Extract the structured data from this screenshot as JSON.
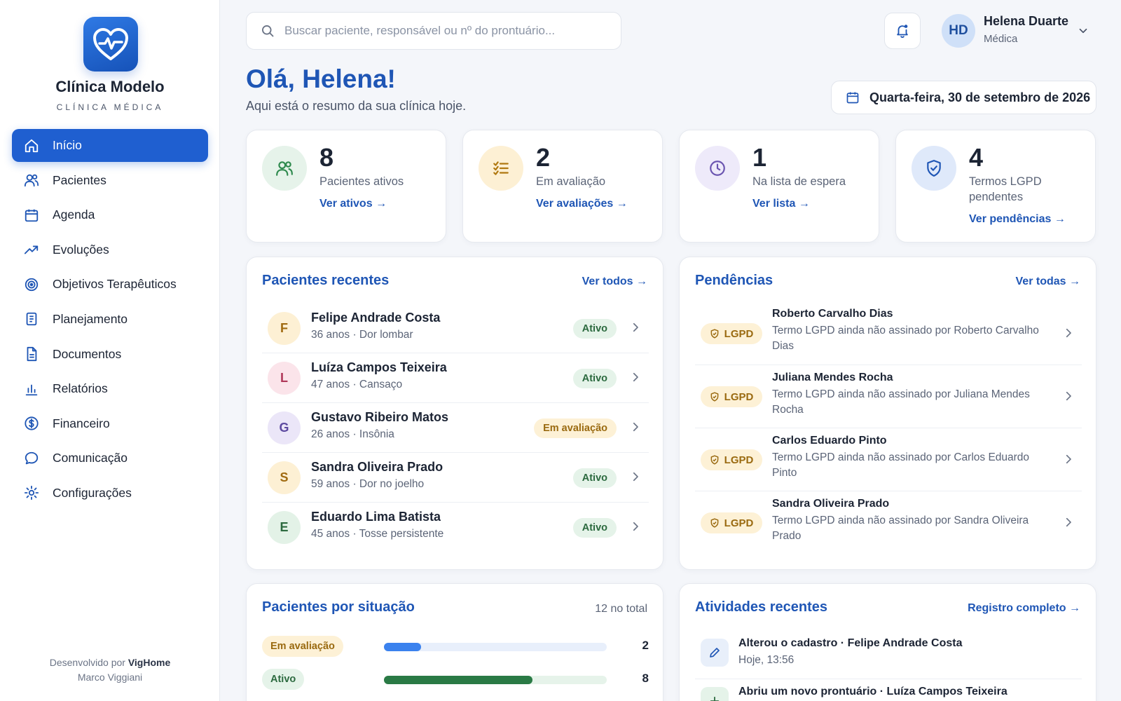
{
  "brand": {
    "name": "Clínica Modelo",
    "subtitle": "CLÍNICA MÉDICA"
  },
  "sidebar": {
    "items": [
      {
        "label": "Início",
        "icon": "home-icon",
        "active": true
      },
      {
        "label": "Pacientes",
        "icon": "users-icon"
      },
      {
        "label": "Agenda",
        "icon": "calendar-icon"
      },
      {
        "label": "Evoluções",
        "icon": "trending-up-icon"
      },
      {
        "label": "Objetivos Terapêuticos",
        "icon": "target-icon"
      },
      {
        "label": "Planejamento",
        "icon": "clipboard-icon"
      },
      {
        "label": "Documentos",
        "icon": "document-icon"
      },
      {
        "label": "Relatórios",
        "icon": "bar-chart-icon"
      },
      {
        "label": "Financeiro",
        "icon": "dollar-icon"
      },
      {
        "label": "Comunicação",
        "icon": "chat-icon"
      },
      {
        "label": "Configurações",
        "icon": "gear-icon"
      }
    ],
    "footer": {
      "prefix": "Desenvolvido por",
      "company": "VigHome",
      "author": "Marco Viggiani"
    }
  },
  "header": {
    "search_placeholder": "Buscar paciente, responsável ou nº do prontuário...",
    "user": {
      "initials": "HD",
      "name": "Helena Duarte",
      "role": "Médica"
    }
  },
  "greeting": {
    "title": "Olá, Helena!",
    "subtitle": "Aqui está o resumo da sua clínica hoje.",
    "date": "Quarta-feira, 30 de setembro de 2026"
  },
  "stats": [
    {
      "value": "8",
      "label": "Pacientes ativos",
      "link": "Ver ativos",
      "icon": "users-icon",
      "color": "#2f8a4e",
      "bg": "#e6f3ea"
    },
    {
      "value": "2",
      "label": "Em avaliação",
      "link": "Ver avaliações",
      "icon": "checklist-icon",
      "color": "#b07810",
      "bg": "#fdf0d4"
    },
    {
      "value": "1",
      "label": "Na lista de espera",
      "link": "Ver lista",
      "icon": "clock-icon",
      "color": "#6a54b0",
      "bg": "#eeeafa"
    },
    {
      "value": "4",
      "label": "Termos LGPD pendentes",
      "link": "Ver pendências",
      "icon": "shield-check-icon",
      "color": "#1f56b5",
      "bg": "#dfe9fa"
    }
  ],
  "recent_patients": {
    "title": "Pacientes recentes",
    "link": "Ver todos",
    "rows": [
      {
        "initial": "F",
        "name": "Felipe Andrade Costa",
        "info": "36 anos · Dor lombar",
        "status": "Ativo",
        "tone": "ok",
        "av_bg": "#fdf0d4",
        "av_fg": "#a06a10"
      },
      {
        "initial": "L",
        "name": "Luíza Campos Teixeira",
        "info": "47 anos · Cansaço",
        "status": "Ativo",
        "tone": "ok",
        "av_bg": "#fbe4ea",
        "av_fg": "#b0385a"
      },
      {
        "initial": "G",
        "name": "Gustavo Ribeiro Matos",
        "info": "26 anos · Insônia",
        "status": "Em avaliação",
        "tone": "eval",
        "av_bg": "#ebe6f8",
        "av_fg": "#5d4aa0"
      },
      {
        "initial": "S",
        "name": "Sandra Oliveira Prado",
        "info": "59 anos · Dor no joelho",
        "status": "Ativo",
        "tone": "ok",
        "av_bg": "#fdf0d4",
        "av_fg": "#a06a10"
      },
      {
        "initial": "E",
        "name": "Eduardo Lima Batista",
        "info": "45 anos · Tosse persistente",
        "status": "Ativo",
        "tone": "ok",
        "av_bg": "#e3f2e7",
        "av_fg": "#2c6a3f"
      }
    ]
  },
  "pending": {
    "title": "Pendências",
    "link": "Ver todas",
    "badge": "LGPD",
    "rows": [
      {
        "name": "Roberto Carvalho Dias",
        "desc": "Termo LGPD ainda não assinado por Roberto Carvalho Dias"
      },
      {
        "name": "Juliana Mendes Rocha",
        "desc": "Termo LGPD ainda não assinado por Juliana Mendes Rocha"
      },
      {
        "name": "Carlos Eduardo Pinto",
        "desc": "Termo LGPD ainda não assinado por Carlos Eduardo Pinto"
      },
      {
        "name": "Sandra Oliveira Prado",
        "desc": "Termo LGPD ainda não assinado por Sandra Oliveira Prado"
      }
    ]
  },
  "by_status": {
    "title": "Pacientes por situação",
    "total": "12 no total",
    "rows": [
      {
        "label": "Em avaliação",
        "count": 2,
        "fraction": 0.167,
        "bar": "#3b82ee",
        "track": "#e8effb",
        "badge_bg": "#fdf1d6",
        "badge_fg": "#9a6a10"
      },
      {
        "label": "Ativo",
        "count": 8,
        "fraction": 0.667,
        "bar": "#2a7a45",
        "track": "#e6f3ea",
        "badge_bg": "#e5f3e9",
        "badge_fg": "#2c6a3f"
      }
    ]
  },
  "activities": {
    "title": "Atividades recentes",
    "link": "Registro completo",
    "rows": [
      {
        "title": "Alterou o cadastro · Felipe Andrade Costa",
        "time": "Hoje, 13:56",
        "icon": "pencil-icon"
      },
      {
        "title": "Abriu um novo prontuário · Luíza Campos Teixeira",
        "time": "",
        "icon": "plus-icon"
      }
    ]
  }
}
